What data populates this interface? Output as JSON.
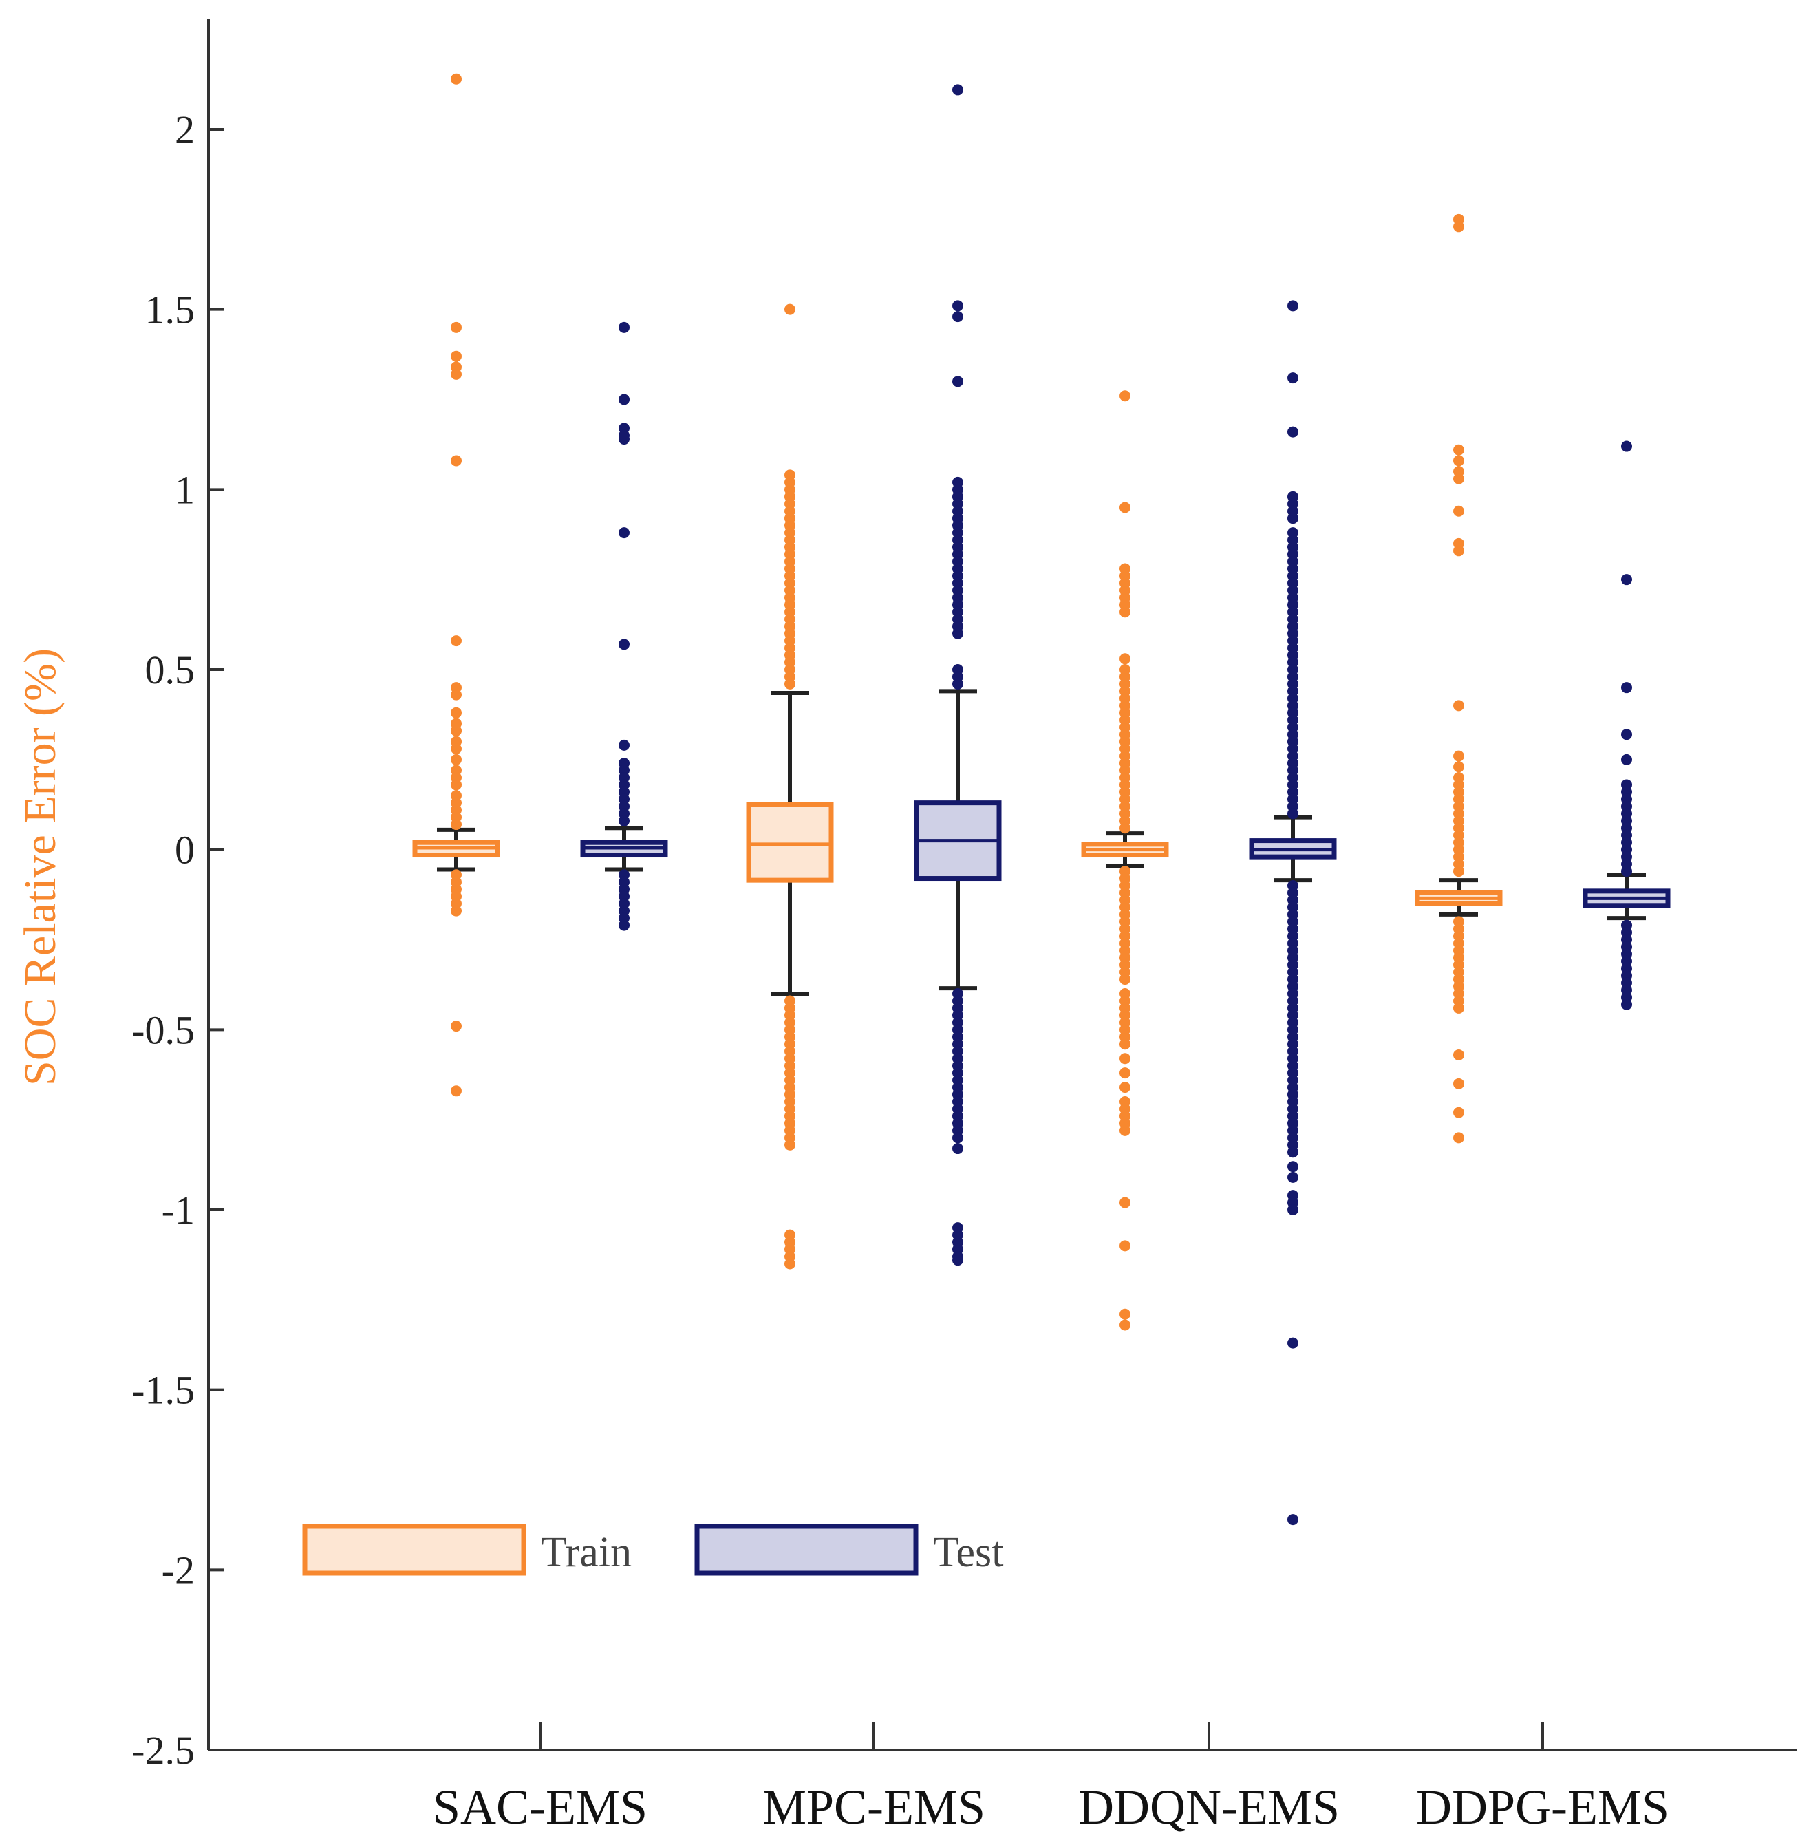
{
  "chart_data": {
    "type": "boxplot",
    "title": "",
    "xlabel": "",
    "ylabel": "SOC Relative Error (%)",
    "ylim": [
      -2.5,
      2.3
    ],
    "yticks": [
      {
        "value": 2,
        "label": "2"
      },
      {
        "value": 1.5,
        "label": "1.5"
      },
      {
        "value": 1,
        "label": "1"
      },
      {
        "value": 0.5,
        "label": "0.5"
      },
      {
        "value": 0,
        "label": "0"
      },
      {
        "value": -0.5,
        "label": "-0.5"
      },
      {
        "value": -1,
        "label": "-1"
      },
      {
        "value": -1.5,
        "label": "-1.5"
      },
      {
        "value": -2,
        "label": "-2"
      },
      {
        "value": -2.5,
        "label": "-2.5"
      }
    ],
    "categories": [
      "SAC-EMS",
      "MPC-EMS",
      "DDQN-EMS",
      "DDPG-EMS"
    ],
    "legend": {
      "position": "bottom-left",
      "entries": [
        {
          "name": "Train",
          "fill": "#fde6d3",
          "stroke": "#f7882f"
        },
        {
          "name": "Test",
          "fill": "#cfd0e6",
          "stroke": "#15196b"
        }
      ]
    },
    "colors": {
      "train": "#f7882f",
      "test": "#15196b",
      "axis": "#333333",
      "whisker": "#222222"
    },
    "series": [
      {
        "name": "Train",
        "boxes": [
          {
            "category": "SAC-EMS",
            "median": 0.005,
            "q1": -0.015,
            "q3": 0.02,
            "whisker_low": -0.055,
            "whisker_high": 0.055,
            "outliers": [
              2.14,
              1.45,
              1.37,
              1.34,
              1.32,
              1.08,
              0.58,
              0.45,
              0.43,
              0.38,
              0.35,
              0.33,
              0.3,
              0.28,
              0.25,
              0.22,
              0.2,
              0.18,
              0.15,
              0.13,
              0.11,
              0.09,
              0.07,
              -0.07,
              -0.09,
              -0.11,
              -0.13,
              -0.15,
              -0.17,
              -0.49,
              -0.67
            ]
          },
          {
            "category": "MPC-EMS",
            "median": 0.015,
            "q1": -0.085,
            "q3": 0.125,
            "whisker_low": -0.4,
            "whisker_high": 0.435,
            "outliers": [
              1.5,
              1.04,
              1.02,
              1.0,
              0.98,
              0.96,
              0.94,
              0.92,
              0.9,
              0.88,
              0.86,
              0.84,
              0.82,
              0.8,
              0.78,
              0.76,
              0.74,
              0.72,
              0.7,
              0.68,
              0.66,
              0.64,
              0.62,
              0.6,
              0.58,
              0.56,
              0.54,
              0.52,
              0.5,
              0.48,
              0.46,
              -0.42,
              -0.44,
              -0.46,
              -0.48,
              -0.5,
              -0.52,
              -0.54,
              -0.56,
              -0.58,
              -0.6,
              -0.62,
              -0.64,
              -0.66,
              -0.68,
              -0.7,
              -0.72,
              -0.74,
              -0.76,
              -0.78,
              -0.8,
              -0.82,
              -1.07,
              -1.09,
              -1.11,
              -1.13,
              -1.15
            ]
          },
          {
            "category": "DDQN-EMS",
            "median": 0.0,
            "q1": -0.015,
            "q3": 0.015,
            "whisker_low": -0.045,
            "whisker_high": 0.045,
            "outliers": [
              1.26,
              0.95,
              0.78,
              0.76,
              0.74,
              0.72,
              0.7,
              0.68,
              0.66,
              0.53,
              0.5,
              0.48,
              0.46,
              0.44,
              0.42,
              0.4,
              0.38,
              0.36,
              0.34,
              0.32,
              0.3,
              0.28,
              0.26,
              0.24,
              0.22,
              0.2,
              0.18,
              0.16,
              0.14,
              0.12,
              0.1,
              0.08,
              0.06,
              -0.06,
              -0.08,
              -0.1,
              -0.12,
              -0.14,
              -0.16,
              -0.18,
              -0.2,
              -0.22,
              -0.24,
              -0.26,
              -0.28,
              -0.3,
              -0.32,
              -0.34,
              -0.36,
              -0.4,
              -0.42,
              -0.44,
              -0.46,
              -0.48,
              -0.5,
              -0.52,
              -0.54,
              -0.58,
              -0.62,
              -0.66,
              -0.7,
              -0.72,
              -0.74,
              -0.76,
              -0.78,
              -0.98,
              -1.1,
              -1.29,
              -1.32
            ]
          },
          {
            "category": "DDPG-EMS",
            "median": -0.135,
            "q1": -0.15,
            "q3": -0.12,
            "whisker_low": -0.18,
            "whisker_high": -0.085,
            "outliers": [
              1.75,
              1.73,
              1.11,
              1.08,
              1.05,
              1.03,
              0.94,
              0.85,
              0.83,
              0.4,
              0.26,
              0.23,
              0.2,
              0.18,
              0.16,
              0.14,
              0.12,
              0.1,
              0.08,
              0.06,
              0.04,
              0.02,
              0.0,
              -0.02,
              -0.04,
              -0.06,
              -0.2,
              -0.22,
              -0.24,
              -0.26,
              -0.28,
              -0.3,
              -0.32,
              -0.34,
              -0.36,
              -0.38,
              -0.4,
              -0.42,
              -0.44,
              -0.57,
              -0.65,
              -0.73,
              -0.8
            ]
          }
        ]
      },
      {
        "name": "Test",
        "boxes": [
          {
            "category": "SAC-EMS",
            "median": 0.005,
            "q1": -0.015,
            "q3": 0.02,
            "whisker_low": -0.055,
            "whisker_high": 0.06,
            "outliers": [
              1.45,
              1.25,
              1.17,
              1.15,
              1.14,
              0.88,
              0.57,
              0.29,
              0.24,
              0.22,
              0.2,
              0.18,
              0.16,
              0.14,
              0.12,
              0.1,
              0.08,
              -0.07,
              -0.09,
              -0.11,
              -0.13,
              -0.15,
              -0.17,
              -0.19,
              -0.21
            ]
          },
          {
            "category": "MPC-EMS",
            "median": 0.025,
            "q1": -0.08,
            "q3": 0.13,
            "whisker_low": -0.385,
            "whisker_high": 0.44,
            "outliers": [
              2.11,
              1.51,
              1.48,
              1.3,
              1.02,
              1.0,
              0.98,
              0.96,
              0.94,
              0.92,
              0.9,
              0.88,
              0.86,
              0.84,
              0.82,
              0.8,
              0.78,
              0.76,
              0.74,
              0.72,
              0.7,
              0.68,
              0.66,
              0.64,
              0.62,
              0.6,
              0.5,
              0.48,
              0.46,
              -0.4,
              -0.42,
              -0.44,
              -0.46,
              -0.48,
              -0.5,
              -0.52,
              -0.54,
              -0.56,
              -0.58,
              -0.6,
              -0.62,
              -0.64,
              -0.66,
              -0.68,
              -0.7,
              -0.72,
              -0.74,
              -0.76,
              -0.78,
              -0.8,
              -0.83,
              -1.05,
              -1.07,
              -1.09,
              -1.11,
              -1.13,
              -1.14
            ]
          },
          {
            "category": "DDQN-EMS",
            "median": 0.0,
            "q1": -0.02,
            "q3": 0.025,
            "whisker_low": -0.085,
            "whisker_high": 0.09,
            "outliers": [
              1.51,
              1.31,
              1.16,
              0.98,
              0.96,
              0.94,
              0.92,
              0.88,
              0.86,
              0.84,
              0.82,
              0.8,
              0.78,
              0.76,
              0.74,
              0.72,
              0.7,
              0.68,
              0.66,
              0.64,
              0.62,
              0.6,
              0.58,
              0.56,
              0.54,
              0.52,
              0.5,
              0.48,
              0.46,
              0.44,
              0.42,
              0.4,
              0.38,
              0.36,
              0.34,
              0.32,
              0.3,
              0.28,
              0.26,
              0.24,
              0.22,
              0.2,
              0.18,
              0.16,
              0.14,
              0.12,
              0.1,
              -0.1,
              -0.12,
              -0.14,
              -0.16,
              -0.18,
              -0.2,
              -0.22,
              -0.24,
              -0.26,
              -0.28,
              -0.3,
              -0.32,
              -0.34,
              -0.36,
              -0.38,
              -0.4,
              -0.42,
              -0.44,
              -0.46,
              -0.48,
              -0.5,
              -0.52,
              -0.54,
              -0.56,
              -0.58,
              -0.6,
              -0.62,
              -0.64,
              -0.66,
              -0.68,
              -0.7,
              -0.72,
              -0.74,
              -0.76,
              -0.78,
              -0.8,
              -0.82,
              -0.84,
              -0.88,
              -0.91,
              -0.96,
              -0.98,
              -1.0,
              -1.37,
              -1.86
            ]
          },
          {
            "category": "DDPG-EMS",
            "median": -0.135,
            "q1": -0.155,
            "q3": -0.115,
            "whisker_low": -0.19,
            "whisker_high": -0.07,
            "outliers": [
              1.12,
              0.75,
              0.45,
              0.32,
              0.25,
              0.18,
              0.16,
              0.14,
              0.12,
              0.1,
              0.08,
              0.06,
              0.04,
              0.02,
              0.0,
              -0.02,
              -0.04,
              -0.06,
              -0.21,
              -0.23,
              -0.25,
              -0.27,
              -0.29,
              -0.31,
              -0.33,
              -0.35,
              -0.37,
              -0.39,
              -0.41,
              -0.43
            ]
          }
        ]
      }
    ]
  }
}
